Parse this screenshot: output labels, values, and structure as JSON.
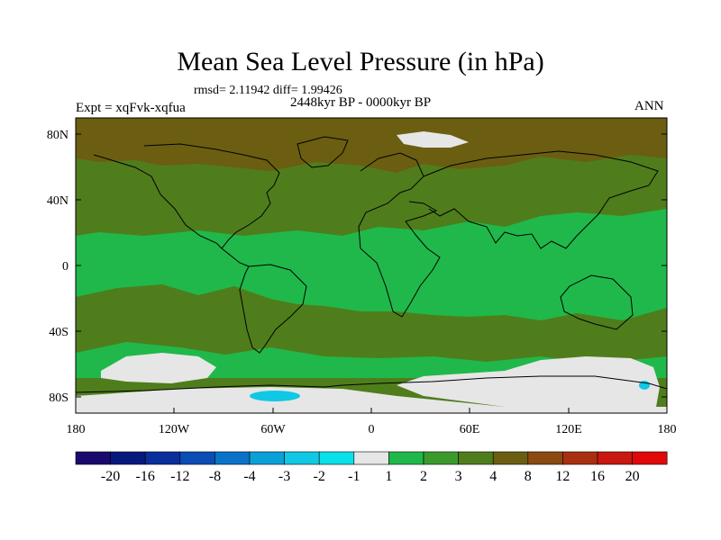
{
  "title": "Mean Sea Level Pressure (in hPa)",
  "stats": "rmsd= 2.11942 diff= 1.99426",
  "period": "2448kyr BP - 0000kyr BP",
  "experiment": "Expt = xqFvk-xqfua",
  "season": "ANN",
  "lat_ticks": [
    "80N",
    "40N",
    "0",
    "40S",
    "80S"
  ],
  "lon_ticks": [
    "180",
    "120W",
    "60W",
    "0",
    "60E",
    "120E",
    "180"
  ],
  "colorbar": {
    "labels": [
      "-20",
      "-16",
      "-12",
      "-8",
      "-4",
      "-3",
      "-2",
      "-1",
      "1",
      "2",
      "3",
      "4",
      "8",
      "12",
      "16",
      "20"
    ],
    "colors": [
      "#1a0a6e",
      "#08197e",
      "#0a2e9c",
      "#0b4db4",
      "#0a73c8",
      "#0aa0d8",
      "#10c8e4",
      "#0ae0ea",
      "#e6e6e6",
      "#20b84a",
      "#3c9a2c",
      "#4f7d1c",
      "#6b5e10",
      "#8a4a10",
      "#a83010",
      "#c81810",
      "#e00808"
    ]
  },
  "map_colors": {
    "zone_north": "#6b5e10",
    "zone_mid": "#4f7d1c",
    "zone_low": "#20b84a",
    "ice": "#e6e6e6",
    "blue_anomaly": "#10c8e4",
    "coast": "#000000"
  }
}
